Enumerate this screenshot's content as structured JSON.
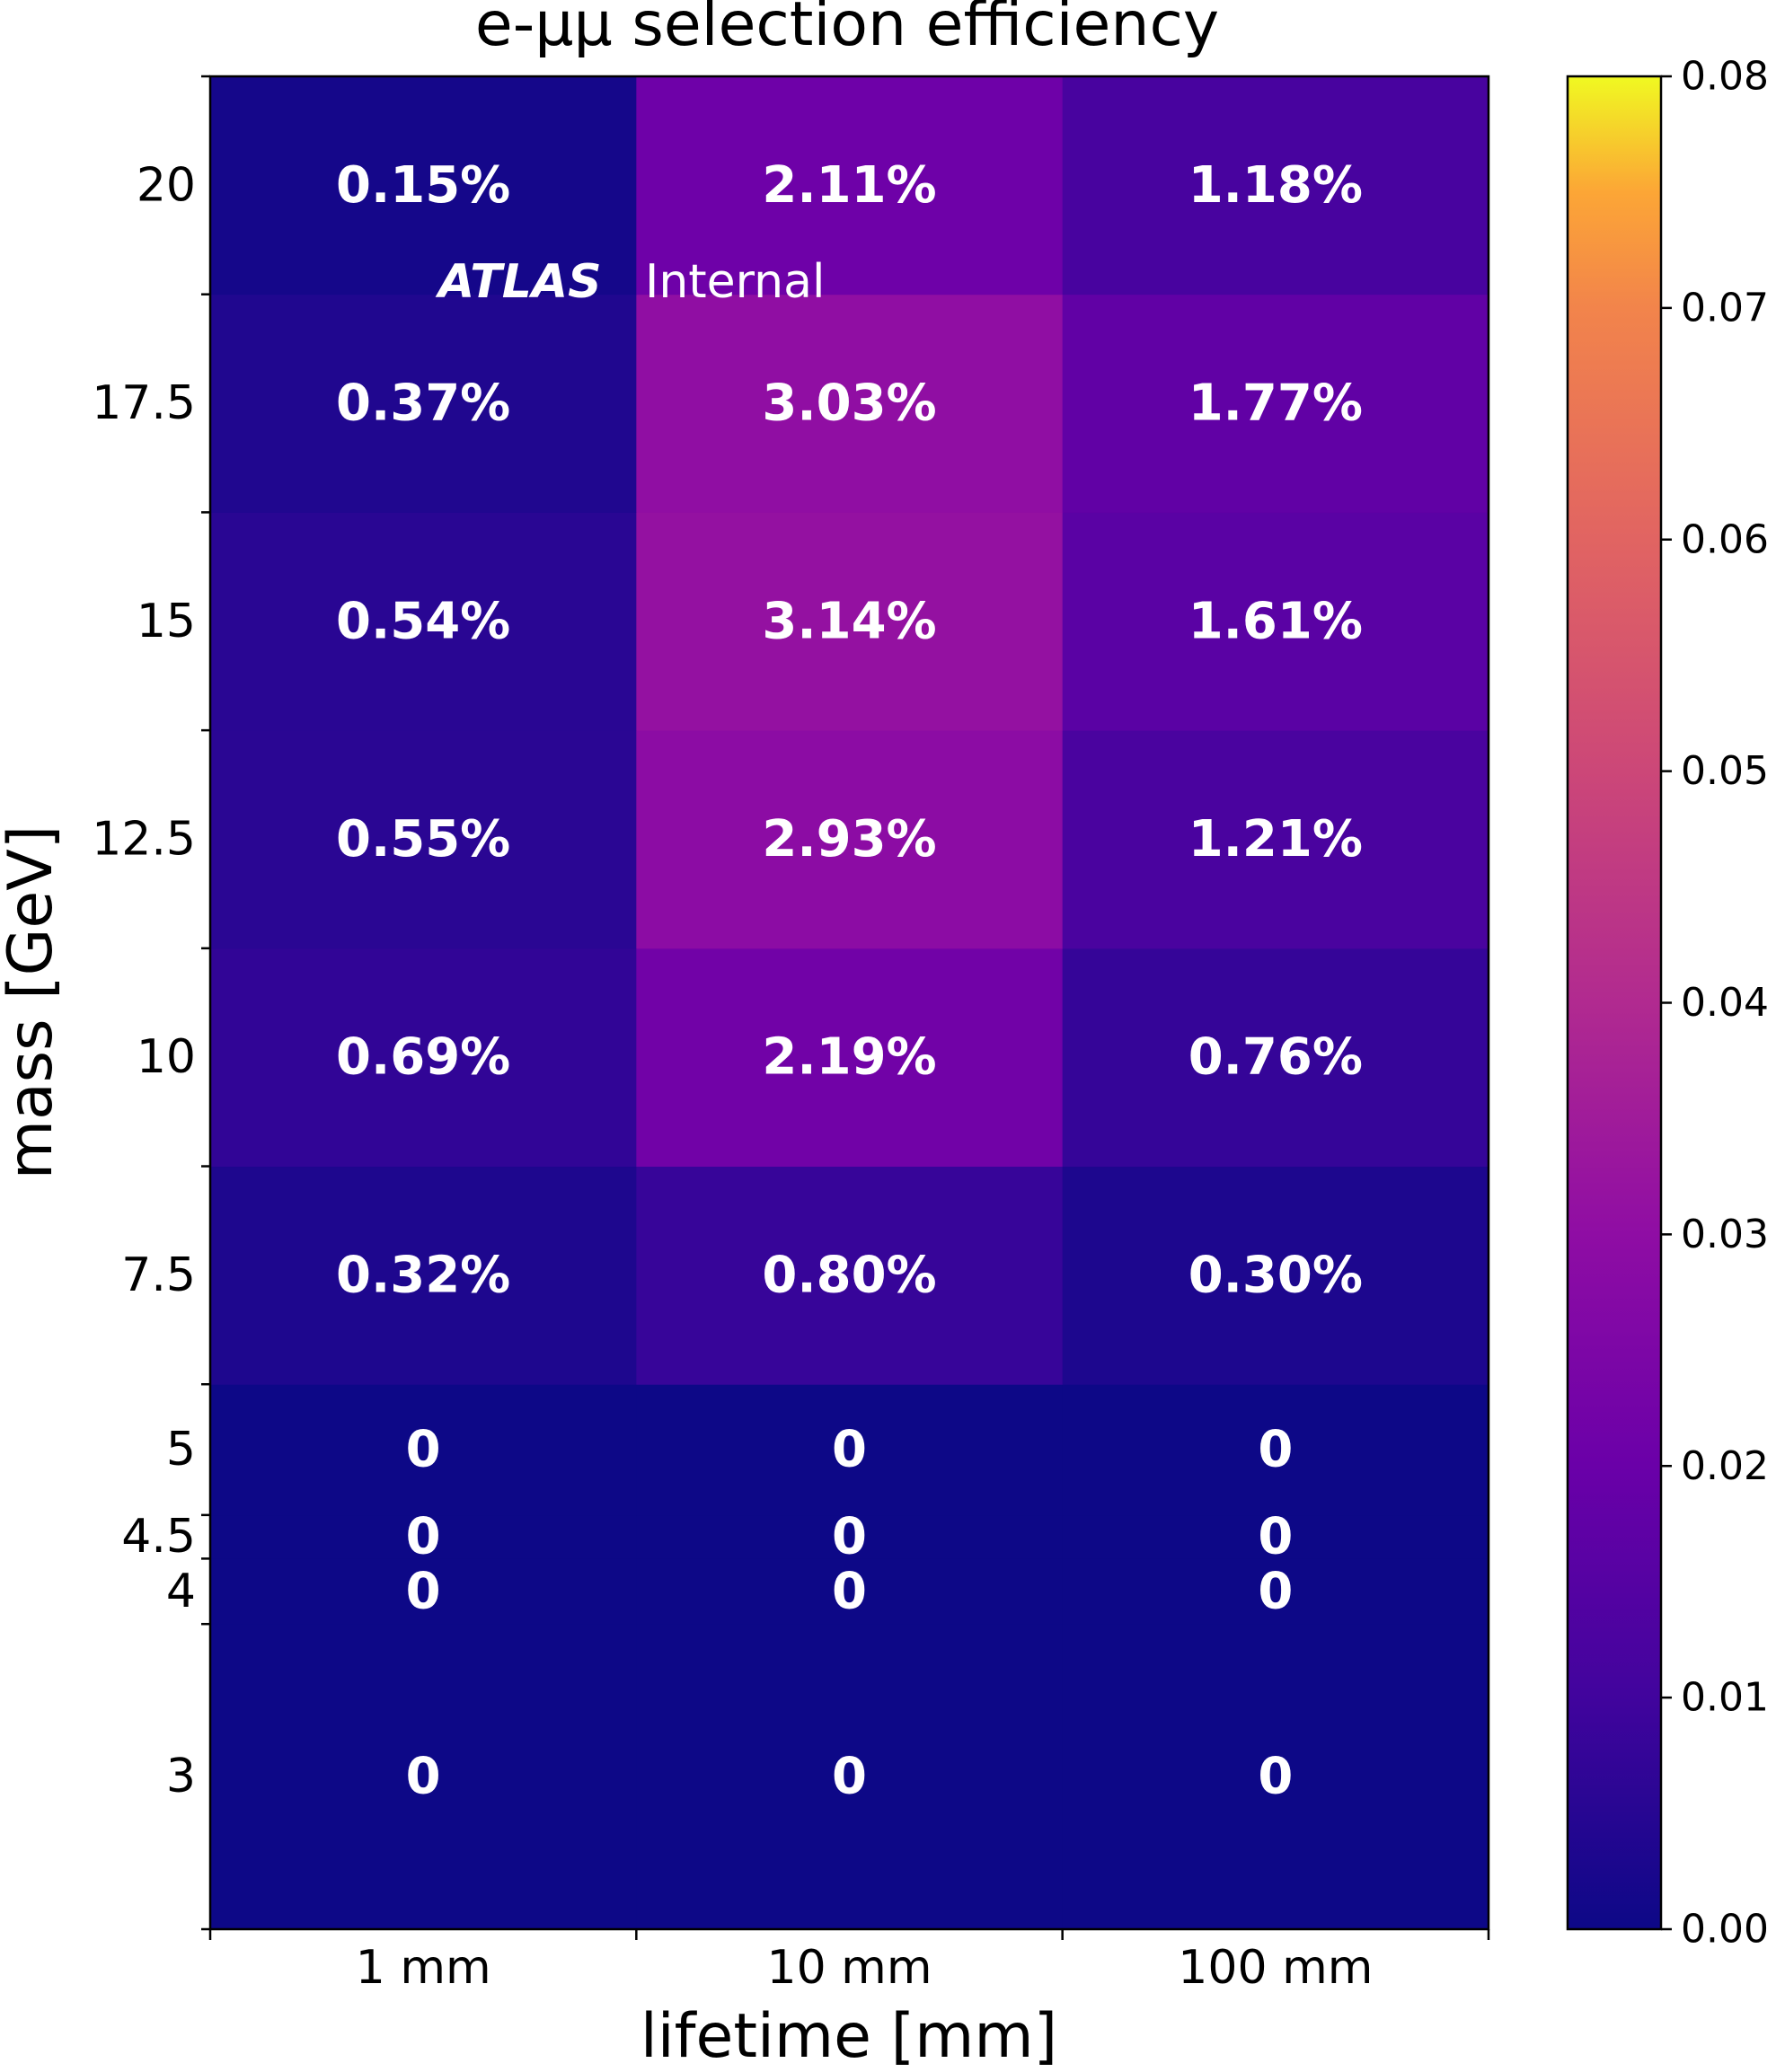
{
  "chart_data": {
    "type": "heatmap",
    "title": "e-μμ selection efficiency",
    "xlabel": "lifetime [mm]",
    "ylabel": "mass [GeV]",
    "x_categories": [
      "1 mm",
      "10 mm",
      "100 mm"
    ],
    "y_bins": [
      {
        "label": "3",
        "low": 0,
        "high": 3.5
      },
      {
        "label": "4",
        "low": 3.5,
        "high": 4.25
      },
      {
        "label": "4.5",
        "low": 4.25,
        "high": 4.75
      },
      {
        "label": "5",
        "low": 4.75,
        "high": 6.25
      },
      {
        "label": "7.5",
        "low": 6.25,
        "high": 8.75
      },
      {
        "label": "10",
        "low": 8.75,
        "high": 11.25
      },
      {
        "label": "12.5",
        "low": 11.25,
        "high": 13.75
      },
      {
        "label": "15",
        "low": 13.75,
        "high": 16.25
      },
      {
        "label": "17.5",
        "low": 16.25,
        "high": 18.75
      },
      {
        "label": "20",
        "low": 18.75,
        "high": 21.25
      }
    ],
    "values": [
      [
        0,
        0,
        0
      ],
      [
        0,
        0,
        0
      ],
      [
        0,
        0,
        0
      ],
      [
        0,
        0,
        0
      ],
      [
        0.0032,
        0.008,
        0.003
      ],
      [
        0.0069,
        0.0219,
        0.0076
      ],
      [
        0.0055,
        0.0293,
        0.0121
      ],
      [
        0.0054,
        0.0314,
        0.0161
      ],
      [
        0.0037,
        0.0303,
        0.0177
      ],
      [
        0.0015,
        0.0211,
        0.0118
      ]
    ],
    "cell_labels": [
      [
        "0",
        "0",
        "0"
      ],
      [
        "0",
        "0",
        "0"
      ],
      [
        "0",
        "0",
        "0"
      ],
      [
        "0",
        "0",
        "0"
      ],
      [
        "0.32%",
        "0.80%",
        "0.30%"
      ],
      [
        "0.69%",
        "2.19%",
        "0.76%"
      ],
      [
        "0.55%",
        "2.93%",
        "1.21%"
      ],
      [
        "0.54%",
        "3.14%",
        "1.61%"
      ],
      [
        "0.37%",
        "3.03%",
        "1.77%"
      ],
      [
        "0.15%",
        "2.11%",
        "1.18%"
      ]
    ],
    "colormap": "plasma",
    "vmin": 0.0,
    "vmax": 0.08,
    "colorbar_ticks": [
      "0.00",
      "0.01",
      "0.02",
      "0.03",
      "0.04",
      "0.05",
      "0.06",
      "0.07",
      "0.08"
    ],
    "annotation": {
      "bold": "ATLAS",
      "text": "Internal"
    }
  }
}
